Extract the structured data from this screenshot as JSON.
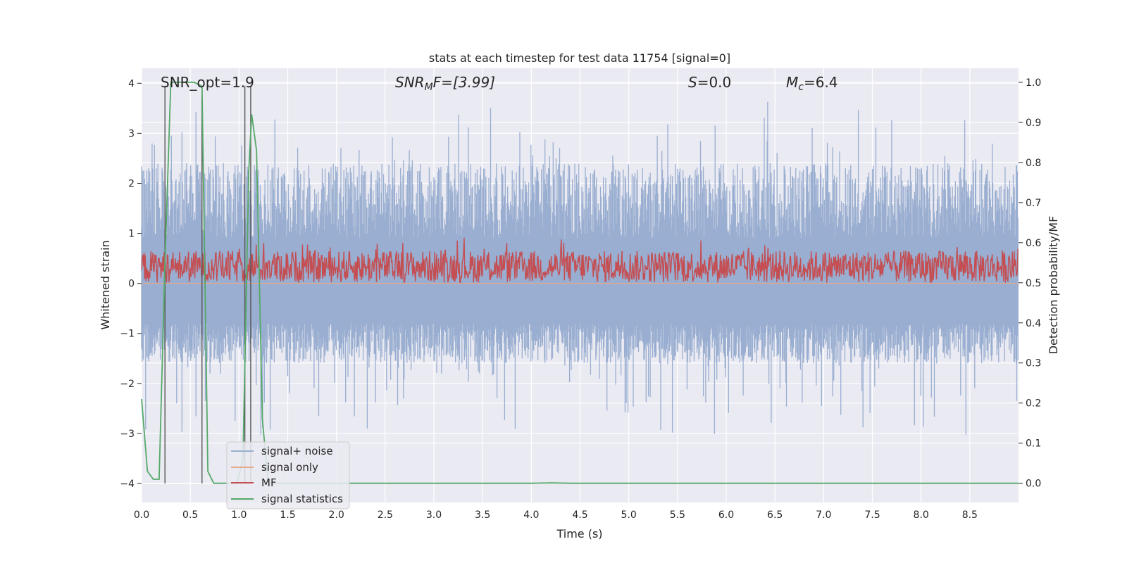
{
  "chart_data": {
    "type": "line",
    "title": "stats at each timestep for test data 11754 [signal=0]",
    "xlabel": "Time (s)",
    "ylabel_left": "Whitened strain",
    "ylabel_right": "Detection probability/MF",
    "xlim": [
      0.0,
      9.0
    ],
    "ylim_left": [
      -4.38,
      4.3
    ],
    "ylim_right": [
      -0.048,
      1.035
    ],
    "x_ticks": [
      "0.0",
      "0.5",
      "1.0",
      "1.5",
      "2.0",
      "2.5",
      "3.0",
      "3.5",
      "4.0",
      "4.5",
      "5.0",
      "5.5",
      "6.0",
      "6.5",
      "7.0",
      "7.5",
      "8.0",
      "8.5"
    ],
    "y_ticks_left": [
      "4",
      "3",
      "2",
      "1",
      "0",
      "−1",
      "−2",
      "−3",
      "−4"
    ],
    "y_ticks_right": [
      "1.0",
      "0.9",
      "0.8",
      "0.7",
      "0.6",
      "0.5",
      "0.4",
      "0.3",
      "0.2",
      "0.1",
      "0.0"
    ],
    "grid": true,
    "legend_position": "lower-left",
    "annotations": {
      "snr_opt": "SNR_opt=1.9",
      "snr_mf_base": "SNR",
      "snr_mf_sub": "M",
      "snr_mf_rest": "F=[3.99]",
      "s_label": "S",
      "s_rest": "=0.0",
      "mc_base": "M",
      "mc_sub": "c",
      "mc_rest": "=6.4"
    },
    "series": [
      {
        "name": "signal+ noise",
        "color": "#99aed0",
        "axis": "left",
        "amplitude_range": [
          -4.0,
          4.0
        ],
        "typical_envelope": [
          -1.6,
          2.4
        ]
      },
      {
        "name": "signal only",
        "color": "#e5a98b",
        "axis": "left",
        "values_constant": 0.0
      },
      {
        "name": "MF",
        "color": "#c44e52",
        "axis": "right",
        "typical_range": [
          0.5,
          0.58
        ]
      },
      {
        "name": "signal statistics",
        "color": "#55a868",
        "axis": "right",
        "x": [
          0.0,
          0.06,
          0.12,
          0.18,
          0.24,
          0.3,
          0.36,
          0.42,
          0.48,
          0.54,
          0.62,
          0.68,
          0.74,
          0.8,
          0.86,
          0.92,
          0.98,
          1.04,
          1.1,
          1.13,
          1.18,
          1.24,
          1.3,
          1.4,
          1.6,
          2.0,
          3.0,
          4.0,
          4.2,
          4.4,
          5.0,
          6.0,
          7.0,
          8.0,
          9.0
        ],
        "values": [
          0.21,
          0.03,
          0.01,
          0.01,
          0.55,
          1.0,
          1.0,
          1.0,
          1.0,
          1.0,
          0.99,
          0.03,
          0.0,
          0.0,
          0.0,
          0.0,
          0.0,
          0.06,
          0.78,
          0.92,
          0.83,
          0.16,
          0.0,
          0.0,
          0.0,
          0.0,
          0.0,
          0.0,
          0.001,
          0.0,
          0.0,
          0.0,
          0.0,
          0.0,
          0.0
        ]
      }
    ],
    "vlines_x": [
      0.24,
      0.62,
      1.06,
      1.12
    ]
  }
}
